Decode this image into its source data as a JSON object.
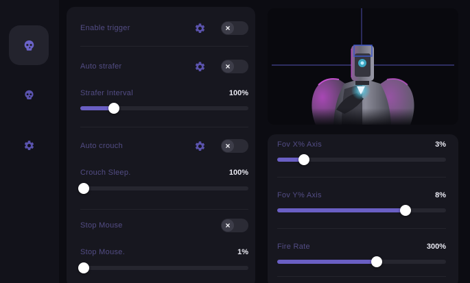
{
  "colors": {
    "accent": "#6a5fc4",
    "label": "#534d85",
    "value": "#e9e9f2",
    "page_bg": "#0c0c12",
    "sidebar_bg": "#12121a",
    "panel_bg": "#17171f",
    "viewport_bg": "#09090e",
    "toggle_bg": "#2b2b35",
    "toggle_knob": "#3d3d49",
    "track": "#26262f",
    "crosshair": "#4b4ba8",
    "target_box": "#3d56c8",
    "robot_magenta": "#cf3fdd",
    "robot_cyan": "#3fc0d8"
  },
  "sidebar": {
    "items": [
      {
        "id": "aim",
        "icon": "skull-icon",
        "active": true
      },
      {
        "id": "trigger",
        "icon": "skull-icon",
        "active": false
      },
      {
        "id": "settings",
        "icon": "gear-icon",
        "active": false
      }
    ]
  },
  "toggle_glyph": "×",
  "main_panel": {
    "enable_trigger": {
      "label": "Enable trigger",
      "toggle": "off",
      "has_settings": true
    },
    "auto_strafer": {
      "label": "Auto strafer",
      "toggle": "off",
      "has_settings": true
    },
    "strafer_interval": {
      "label": "Strafer Interval",
      "value": "100%",
      "percent": 20
    },
    "auto_crouch": {
      "label": "Auto crouch",
      "toggle": "off",
      "has_settings": true
    },
    "crouch_sleep": {
      "label": "Crouch Sleep.",
      "value": "100%",
      "percent": 2
    },
    "stop_mouse": {
      "label": "Stop Mouse",
      "toggle": "off",
      "has_settings": false
    },
    "stop_mouse_slider": {
      "label": "Stop Mouse.",
      "value": "1%",
      "percent": 2
    }
  },
  "right_panel": {
    "fov_x": {
      "label": "Fov X% Axis",
      "value": "3%",
      "percent": 16
    },
    "fov_y": {
      "label": "Fov Y% Axis",
      "value": "8%",
      "percent": 76
    },
    "fire_rate": {
      "label": "Fire Rate",
      "value": "300%",
      "percent": 59
    }
  }
}
